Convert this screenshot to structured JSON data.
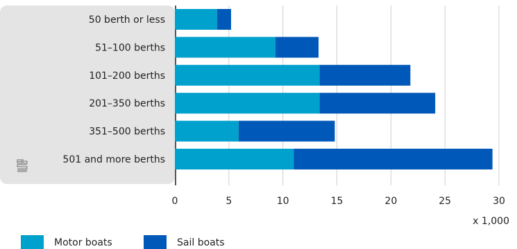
{
  "chart_data": {
    "type": "bar",
    "orientation": "horizontal",
    "stacked": true,
    "categories": [
      "50 berth or less",
      "51–100 berths",
      "101–200 berths",
      "201–350 berths",
      "351–500 berths",
      "501 and more berths"
    ],
    "series": [
      {
        "name": "Motor boats",
        "values": [
          3.9,
          9.3,
          13.4,
          13.4,
          5.9,
          11.0
        ],
        "color": "#00a1cd"
      },
      {
        "name": "Sail boats",
        "values": [
          1.3,
          4.0,
          8.4,
          10.7,
          8.9,
          18.4
        ],
        "color": "#0058b8"
      }
    ],
    "x_ticks": [
      0,
      5,
      10,
      15,
      20,
      25,
      30
    ],
    "xlim": [
      0,
      30
    ],
    "x_unit_label": "x 1,000",
    "grid": "vertical",
    "legend_position": "bottom-left",
    "logo_icon": "cbs-logo-icon",
    "label_panel_color": "#e4e4e4"
  }
}
